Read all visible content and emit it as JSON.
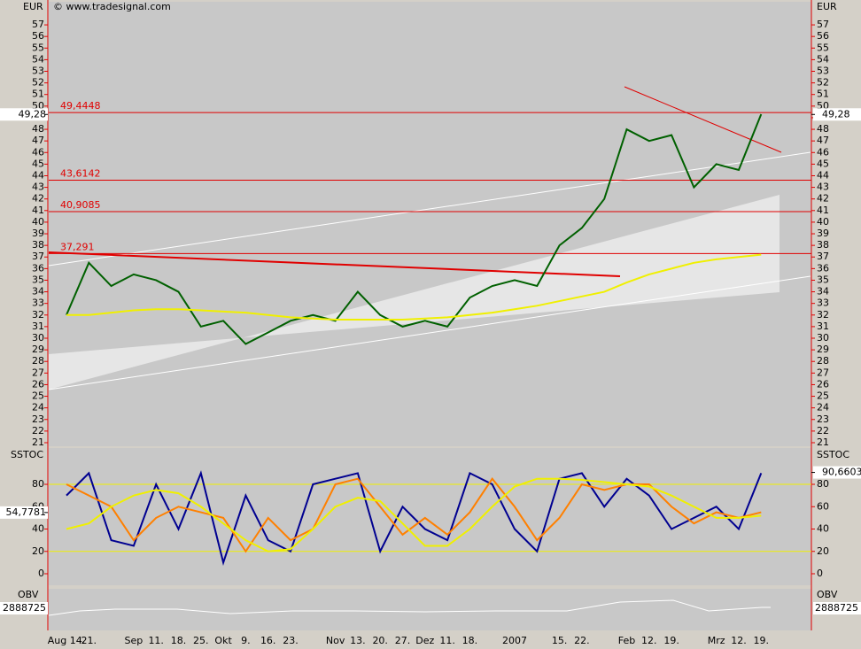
{
  "header": {
    "currency": "EUR",
    "copyright": "© www.tradesignal.com"
  },
  "chart_data": [
    {
      "type": "line",
      "panel": "price",
      "categories": [
        "Aug 14.",
        "21.",
        null,
        "Sep",
        "11.",
        "18.",
        "25.",
        "Okt",
        "9.",
        "16.",
        "23.",
        null,
        "Nov",
        "13.",
        "20.",
        "27.",
        "Dez",
        "11.",
        "18.",
        null,
        "2007",
        null,
        "15.",
        "22.",
        null,
        "Feb",
        "12.",
        "19.",
        null,
        "Mrz",
        "12.",
        "19."
      ],
      "series": [
        {
          "name": "Close",
          "color": "#006000",
          "values": [
            32,
            36.5,
            34.5,
            35.5,
            35,
            34,
            31,
            31.5,
            29.5,
            30.5,
            31.5,
            32,
            31.5,
            34,
            32,
            31,
            31.5,
            31,
            33.5,
            34.5,
            35,
            34.5,
            38,
            39.5,
            42,
            48,
            47,
            47.5,
            43,
            45,
            44.5,
            49.3
          ]
        },
        {
          "name": "MA",
          "color": "#f0f000",
          "values": [
            32,
            32,
            32.2,
            32.4,
            32.5,
            32.5,
            32.4,
            32.3,
            32.2,
            32,
            31.8,
            31.7,
            31.6,
            31.6,
            31.6,
            31.6,
            31.7,
            31.8,
            32,
            32.2,
            32.5,
            32.8,
            33.2,
            33.6,
            34,
            34.8,
            35.5,
            36,
            36.5,
            36.8,
            37,
            37.2
          ]
        }
      ],
      "levels": [
        49.4448,
        43.6142,
        40.9085,
        37.291
      ],
      "level_labels": [
        "49,4448",
        "43,6142",
        "40,9085",
        "37,291"
      ],
      "last_price": {
        "value": 49.28,
        "label": "49,28"
      },
      "ylim": [
        20.77,
        58.76
      ],
      "yticks": [
        21,
        22,
        23,
        24,
        25,
        26,
        27,
        28,
        29,
        30,
        31,
        32,
        33,
        34,
        35,
        36,
        37,
        38,
        39,
        40,
        41,
        42,
        43,
        44,
        45,
        46,
        47,
        48,
        49,
        50,
        51,
        52,
        53,
        54,
        55,
        56,
        57
      ]
    },
    {
      "type": "line",
      "panel": "stoch",
      "title": "SSTOC",
      "series": [
        {
          "name": "Fast",
          "color": "#000090",
          "values": [
            70,
            90,
            30,
            25,
            80,
            40,
            90,
            10,
            70,
            30,
            20,
            80,
            85,
            90,
            20,
            60,
            40,
            30,
            90,
            80,
            40,
            20,
            85,
            90,
            60,
            85,
            70,
            40,
            50,
            60,
            40,
            90
          ]
        },
        {
          "name": "Signal",
          "color": "#ff8000",
          "values": [
            80,
            70,
            60,
            30,
            50,
            60,
            55,
            50,
            20,
            50,
            30,
            40,
            80,
            85,
            60,
            35,
            50,
            35,
            55,
            85,
            60,
            30,
            50,
            80,
            75,
            80,
            80,
            60,
            45,
            55,
            50,
            55
          ]
        },
        {
          "name": "Slow",
          "color": "#f0f000",
          "values": [
            40,
            45,
            60,
            70,
            75,
            72,
            60,
            45,
            30,
            20,
            22,
            40,
            60,
            68,
            65,
            45,
            25,
            25,
            40,
            60,
            78,
            85,
            85,
            84,
            82,
            80,
            78,
            70,
            60,
            50,
            50,
            52
          ]
        }
      ],
      "levels": [
        80,
        20
      ],
      "left_label": {
        "value": 54.7781,
        "label": "54,7781"
      },
      "right_label": {
        "value": 90.6603,
        "label": "90,6603"
      },
      "ylim": [
        -9.5,
        111.7
      ],
      "yticks": [
        0,
        20,
        40,
        60,
        80
      ]
    },
    {
      "type": "line",
      "panel": "obv",
      "title": "OBV",
      "last": 2888725
    }
  ]
}
